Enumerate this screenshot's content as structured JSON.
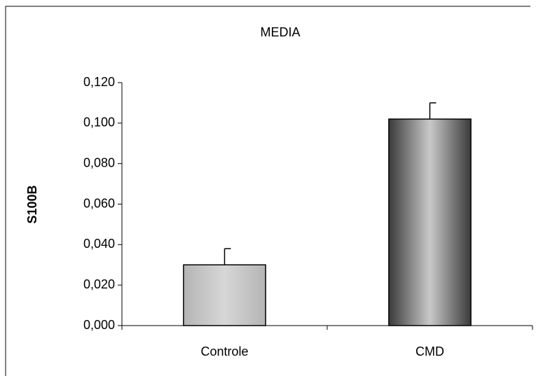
{
  "chart_data": {
    "type": "bar",
    "title": "MEDIA",
    "y_label": "S100B",
    "categories": [
      "Controle",
      "CMD"
    ],
    "values": [
      0.03,
      0.102
    ],
    "errors": [
      0.008,
      0.008
    ],
    "colors": [
      "#b4b4b4",
      "#3a3a3a"
    ],
    "ylim": [
      0,
      0.12
    ],
    "yticks": [
      {
        "value": 0,
        "label": "0,000"
      },
      {
        "value": 0.02,
        "label": "0,020"
      },
      {
        "value": 0.04,
        "label": "0,040"
      },
      {
        "value": 0.06,
        "label": "0,060"
      },
      {
        "value": 0.08,
        "label": "0,080"
      },
      {
        "value": 0.1,
        "label": "0,100"
      },
      {
        "value": 0.12,
        "label": "0,120"
      }
    ],
    "grid": false
  }
}
